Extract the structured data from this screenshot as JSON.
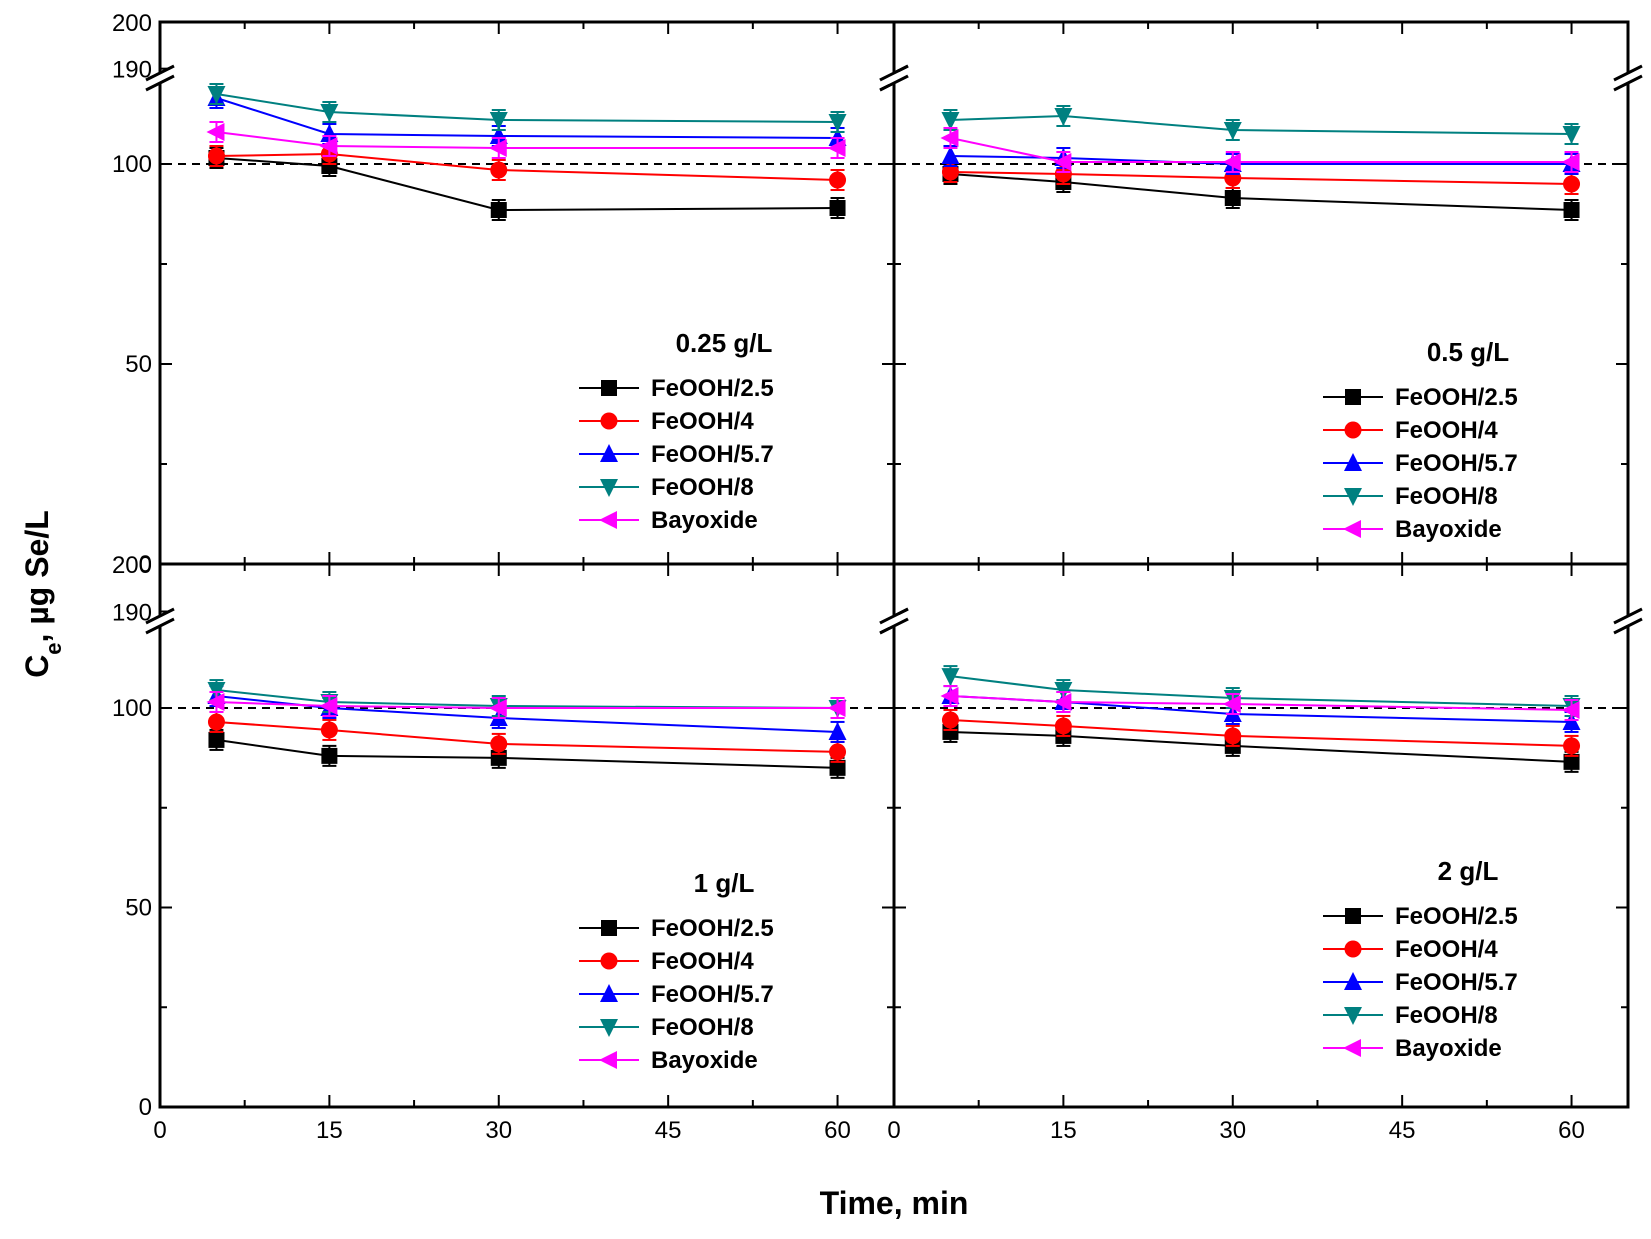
{
  "chart_data": {
    "type": "line",
    "xlabel": "Time, min",
    "ylabel_main": "C",
    "ylabel_sub": "e",
    "ylabel_rest": ", µg Se/L",
    "xlim": [
      0,
      65
    ],
    "xticks": [
      0,
      15,
      30,
      45,
      60
    ],
    "ylim_lower": [
      0,
      120
    ],
    "yticks_lower": [
      0,
      50,
      100
    ],
    "yticks_upper": [
      190,
      200
    ],
    "reference_line": 100,
    "series_styles": [
      {
        "name": "FeOOH/2.5",
        "color": "#000000",
        "marker": "square"
      },
      {
        "name": "FeOOH/4",
        "color": "#ff0000",
        "marker": "circle"
      },
      {
        "name": "FeOOH/5.7",
        "color": "#0000ff",
        "marker": "triangle-up"
      },
      {
        "name": "FeOOH/8",
        "color": "#008080",
        "marker": "triangle-down"
      },
      {
        "name": "Bayoxide",
        "color": "#ff00ff",
        "marker": "triangle-left"
      }
    ],
    "panels": [
      {
        "title": "0.25 g/L",
        "x": [
          5,
          15,
          30,
          60
        ],
        "series": [
          {
            "name": "FeOOH/2.5",
            "values": [
              101.5,
              99.5,
              88.5,
              89.0
            ]
          },
          {
            "name": "FeOOH/4",
            "values": [
              102.0,
              102.5,
              98.5,
              96.0
            ]
          },
          {
            "name": "FeOOH/5.7",
            "values": [
              116.5,
              107.5,
              107.0,
              106.5
            ]
          },
          {
            "name": "FeOOH/8",
            "values": [
              117.5,
              113.0,
              111.0,
              110.5
            ]
          },
          {
            "name": "Bayoxide",
            "values": [
              108.0,
              104.5,
              104.0,
              104.0
            ]
          }
        ]
      },
      {
        "title": "0.5 g/L",
        "x": [
          5,
          15,
          30,
          60
        ],
        "series": [
          {
            "name": "FeOOH/2.5",
            "values": [
              97.5,
              95.5,
              91.5,
              88.5
            ]
          },
          {
            "name": "FeOOH/4",
            "values": [
              98.0,
              97.5,
              96.5,
              95.0
            ]
          },
          {
            "name": "FeOOH/5.7",
            "values": [
              102.0,
              101.5,
              100.0,
              100.0
            ]
          },
          {
            "name": "FeOOH/8",
            "values": [
              111.0,
              112.0,
              108.5,
              107.5
            ]
          },
          {
            "name": "Bayoxide",
            "values": [
              106.5,
              100.5,
              100.5,
              100.5
            ]
          }
        ]
      },
      {
        "title": "1 g/L",
        "x": [
          5,
          15,
          30,
          60
        ],
        "series": [
          {
            "name": "FeOOH/2.5",
            "values": [
              92.0,
              88.0,
              87.5,
              85.0
            ]
          },
          {
            "name": "FeOOH/4",
            "values": [
              96.5,
              94.5,
              91.0,
              89.0
            ]
          },
          {
            "name": "FeOOH/5.7",
            "values": [
              103.0,
              100.0,
              97.5,
              94.0
            ]
          },
          {
            "name": "FeOOH/8",
            "values": [
              104.5,
              101.5,
              100.5,
              100.0
            ]
          },
          {
            "name": "Bayoxide",
            "values": [
              101.5,
              100.5,
              100.0,
              100.0
            ]
          }
        ]
      },
      {
        "title": "2 g/L",
        "x": [
          5,
          15,
          30,
          60
        ],
        "series": [
          {
            "name": "FeOOH/2.5",
            "values": [
              94.0,
              93.0,
              90.5,
              86.5
            ]
          },
          {
            "name": "FeOOH/4",
            "values": [
              97.0,
              95.5,
              93.0,
              90.5
            ]
          },
          {
            "name": "FeOOH/5.7",
            "values": [
              103.0,
              101.5,
              98.5,
              96.5
            ]
          },
          {
            "name": "FeOOH/8",
            "values": [
              108.0,
              104.5,
              102.5,
              100.5
            ]
          },
          {
            "name": "Bayoxide",
            "values": [
              103.0,
              101.5,
              101.0,
              99.5
            ]
          }
        ]
      }
    ]
  }
}
